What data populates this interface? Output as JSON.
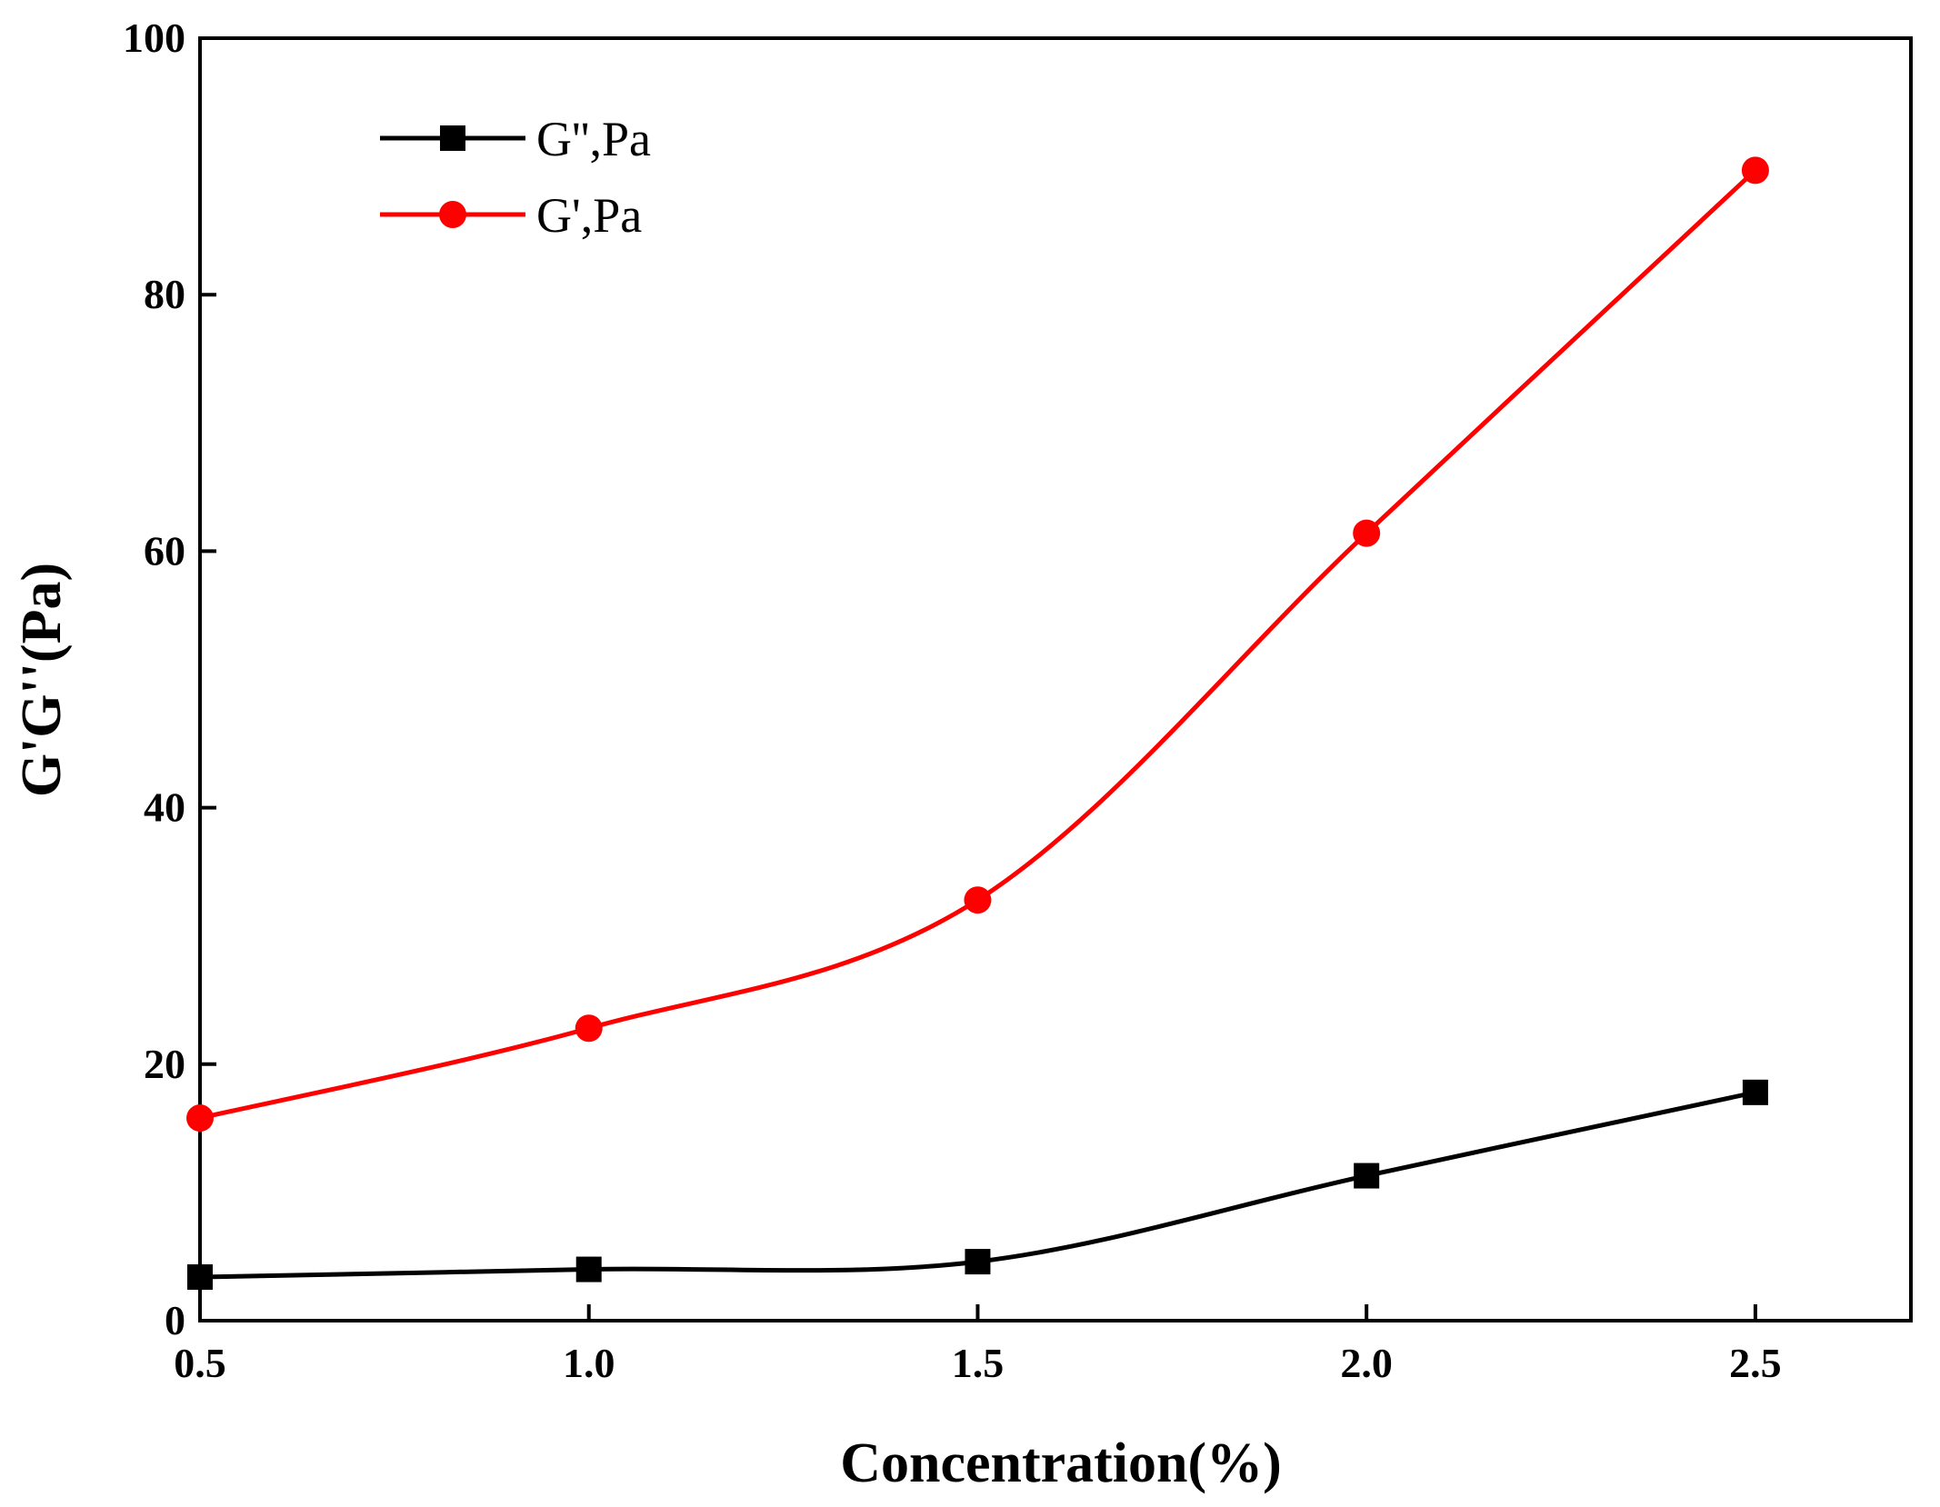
{
  "chart_data": {
    "type": "line",
    "title": "",
    "xlabel": "Concentration(%)",
    "ylabel": "G'G''(Pa)",
    "xlim": [
      0.5,
      2.7
    ],
    "ylim": [
      0,
      100
    ],
    "xticks": [
      {
        "value": 0.5,
        "label": "0.5"
      },
      {
        "value": 1.0,
        "label": "1.0"
      },
      {
        "value": 1.5,
        "label": "1.5"
      },
      {
        "value": 2.0,
        "label": "2.0"
      },
      {
        "value": 2.5,
        "label": "2.5"
      }
    ],
    "yticks": [
      {
        "value": 0,
        "label": "0"
      },
      {
        "value": 20,
        "label": "20"
      },
      {
        "value": 40,
        "label": "40"
      },
      {
        "value": 60,
        "label": "60"
      },
      {
        "value": 80,
        "label": "80"
      },
      {
        "value": 100,
        "label": "100"
      }
    ],
    "grid": false,
    "legend_position": "top-left",
    "series": [
      {
        "name": "G'',Pa",
        "label": "G'',Pa",
        "color": "#000000",
        "marker": "square",
        "x": [
          0.5,
          1.0,
          1.5,
          2.0,
          2.5
        ],
        "y": [
          3.4,
          4.0,
          4.6,
          11.3,
          17.8
        ]
      },
      {
        "name": "G',Pa",
        "label": "G',Pa",
        "color": "#ff0000",
        "marker": "circle",
        "x": [
          0.5,
          1.0,
          1.5,
          2.0,
          2.5
        ],
        "y": [
          15.8,
          22.8,
          32.8,
          61.4,
          89.7
        ]
      }
    ]
  }
}
